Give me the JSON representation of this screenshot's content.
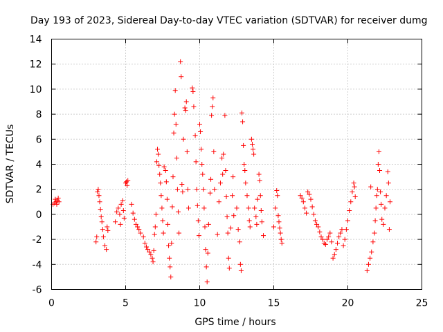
{
  "chart_data": {
    "type": "scatter",
    "title": "Day 193 of 2023, Sidereal Day-to-day VTEC variation (SDTVAR) for receiver dumg",
    "xlabel": "GPS time / hours",
    "ylabel": "SDTVAR / TECUs",
    "xlim": [
      0,
      25
    ],
    "ylim": [
      -6,
      14
    ],
    "xticks": [
      0,
      5,
      10,
      15,
      20,
      25
    ],
    "yticks": [
      -6,
      -4,
      -2,
      0,
      2,
      4,
      6,
      8,
      10,
      12,
      14
    ],
    "grid": true,
    "marker": "+",
    "marker_color": "#ff0000",
    "series": [
      {
        "name": "SDTVAR",
        "points": [
          [
            0.1,
            0.8
          ],
          [
            0.2,
            0.9
          ],
          [
            0.25,
            1.2
          ],
          [
            0.3,
            1.0
          ],
          [
            0.35,
            0.8
          ],
          [
            0.4,
            1.1
          ],
          [
            0.45,
            1.3
          ],
          [
            0.5,
            1.0
          ],
          [
            3.0,
            -2.2
          ],
          [
            3.05,
            -1.8
          ],
          [
            3.1,
            1.8
          ],
          [
            3.15,
            2.0
          ],
          [
            3.2,
            1.5
          ],
          [
            3.25,
            1.0
          ],
          [
            3.3,
            0.4
          ],
          [
            3.35,
            -0.2
          ],
          [
            3.4,
            -0.6
          ],
          [
            3.45,
            -1.2
          ],
          [
            3.5,
            -1.8
          ],
          [
            3.6,
            -2.5
          ],
          [
            3.7,
            -2.8
          ],
          [
            3.75,
            -1.0
          ],
          [
            3.8,
            -1.3
          ],
          [
            4.3,
            -0.6
          ],
          [
            4.4,
            0.2
          ],
          [
            4.5,
            0.5
          ],
          [
            4.6,
            0.0
          ],
          [
            4.65,
            -0.8
          ],
          [
            4.7,
            0.8
          ],
          [
            4.8,
            1.1
          ],
          [
            4.85,
            0.3
          ],
          [
            4.9,
            -0.3
          ],
          [
            5.0,
            2.5
          ],
          [
            5.05,
            2.6
          ],
          [
            5.1,
            2.3
          ],
          [
            5.15,
            2.7
          ],
          [
            5.4,
            0.8
          ],
          [
            5.5,
            0.1
          ],
          [
            5.6,
            -0.4
          ],
          [
            5.7,
            -0.8
          ],
          [
            5.8,
            -1.0
          ],
          [
            5.9,
            -1.2
          ],
          [
            6.0,
            -1.5
          ],
          [
            6.2,
            -1.8
          ],
          [
            6.3,
            -2.3
          ],
          [
            6.4,
            -2.6
          ],
          [
            6.5,
            -2.8
          ],
          [
            6.6,
            -3.0
          ],
          [
            6.7,
            -3.2
          ],
          [
            6.8,
            -3.5
          ],
          [
            6.85,
            -3.8
          ],
          [
            6.9,
            -2.9
          ],
          [
            6.95,
            -1.6
          ],
          [
            7.0,
            -1.0
          ],
          [
            7.05,
            0.0
          ],
          [
            7.1,
            4.2
          ],
          [
            7.15,
            5.2
          ],
          [
            7.2,
            4.8
          ],
          [
            7.25,
            3.9
          ],
          [
            7.3,
            3.2
          ],
          [
            7.35,
            2.5
          ],
          [
            7.4,
            1.5
          ],
          [
            7.45,
            0.5
          ],
          [
            7.5,
            -0.5
          ],
          [
            7.55,
            -1.5
          ],
          [
            7.6,
            3.8
          ],
          [
            7.7,
            3.5
          ],
          [
            7.75,
            2.6
          ],
          [
            7.8,
            1.2
          ],
          [
            7.85,
            -0.8
          ],
          [
            7.9,
            -2.5
          ],
          [
            7.95,
            -3.5
          ],
          [
            8.0,
            -4.2
          ],
          [
            8.05,
            -5.0
          ],
          [
            8.1,
            -2.3
          ],
          [
            8.15,
            0.6
          ],
          [
            8.2,
            3.0
          ],
          [
            8.25,
            6.5
          ],
          [
            8.3,
            8.0
          ],
          [
            8.35,
            9.9
          ],
          [
            8.4,
            7.2
          ],
          [
            8.45,
            4.5
          ],
          [
            8.5,
            2.0
          ],
          [
            8.55,
            0.2
          ],
          [
            8.6,
            -1.5
          ],
          [
            8.7,
            12.2
          ],
          [
            8.75,
            11.0
          ],
          [
            8.8,
            2.4
          ],
          [
            8.85,
            1.8
          ],
          [
            8.9,
            6.0
          ],
          [
            9.0,
            8.5
          ],
          [
            9.05,
            8.3
          ],
          [
            9.1,
            9.0
          ],
          [
            9.15,
            5.0
          ],
          [
            9.2,
            2.0
          ],
          [
            9.25,
            0.5
          ],
          [
            9.5,
            10.1
          ],
          [
            9.55,
            9.8
          ],
          [
            9.6,
            8.6
          ],
          [
            9.7,
            6.3
          ],
          [
            9.75,
            4.2
          ],
          [
            9.8,
            2.0
          ],
          [
            9.85,
            0.7
          ],
          [
            9.9,
            -0.5
          ],
          [
            9.95,
            -1.7
          ],
          [
            10.0,
            7.2
          ],
          [
            10.05,
            6.6
          ],
          [
            10.1,
            5.2
          ],
          [
            10.15,
            4.0
          ],
          [
            10.2,
            3.2
          ],
          [
            10.25,
            2.0
          ],
          [
            10.3,
            0.5
          ],
          [
            10.35,
            -1.0
          ],
          [
            10.4,
            -2.8
          ],
          [
            10.45,
            -4.2
          ],
          [
            10.5,
            -5.4
          ],
          [
            10.55,
            -3.1
          ],
          [
            10.6,
            -0.8
          ],
          [
            10.7,
            1.7
          ],
          [
            10.75,
            2.8
          ],
          [
            10.8,
            7.9
          ],
          [
            10.85,
            8.6
          ],
          [
            10.9,
            9.3
          ],
          [
            10.95,
            5.0
          ],
          [
            11.0,
            2.0
          ],
          [
            11.2,
            -1.6
          ],
          [
            11.3,
            1.0
          ],
          [
            11.4,
            2.5
          ],
          [
            11.5,
            4.5
          ],
          [
            11.55,
            3.2
          ],
          [
            11.6,
            4.8
          ],
          [
            11.7,
            7.9
          ],
          [
            11.75,
            3.5
          ],
          [
            11.8,
            1.4
          ],
          [
            11.85,
            -0.2
          ],
          [
            11.9,
            -1.5
          ],
          [
            11.95,
            -3.5
          ],
          [
            12.0,
            -4.3
          ],
          [
            12.1,
            -1.1
          ],
          [
            12.2,
            1.5
          ],
          [
            12.25,
            3.0
          ],
          [
            12.3,
            -0.1
          ],
          [
            12.5,
            0.5
          ],
          [
            12.6,
            -1.2
          ],
          [
            12.7,
            -2.2
          ],
          [
            12.75,
            -4.0
          ],
          [
            12.8,
            -4.5
          ],
          [
            12.85,
            8.1
          ],
          [
            12.9,
            7.4
          ],
          [
            12.95,
            5.5
          ],
          [
            13.0,
            4.0
          ],
          [
            13.05,
            3.5
          ],
          [
            13.1,
            2.5
          ],
          [
            13.2,
            1.5
          ],
          [
            13.3,
            0.5
          ],
          [
            13.35,
            -0.5
          ],
          [
            13.4,
            -1.0
          ],
          [
            13.5,
            6.0
          ],
          [
            13.55,
            5.6
          ],
          [
            13.6,
            5.2
          ],
          [
            13.65,
            4.8
          ],
          [
            13.7,
            0.5
          ],
          [
            13.8,
            -0.2
          ],
          [
            13.85,
            -0.8
          ],
          [
            13.9,
            1.2
          ],
          [
            14.0,
            3.2
          ],
          [
            14.05,
            2.7
          ],
          [
            14.1,
            1.5
          ],
          [
            14.15,
            0.3
          ],
          [
            14.2,
            -0.6
          ],
          [
            14.3,
            -1.7
          ],
          [
            15.0,
            -1.0
          ],
          [
            15.1,
            0.5
          ],
          [
            15.2,
            1.9
          ],
          [
            15.25,
            1.5
          ],
          [
            15.3,
            -0.1
          ],
          [
            15.35,
            -0.6
          ],
          [
            15.4,
            -1.1
          ],
          [
            15.45,
            -1.5
          ],
          [
            15.5,
            -2.0
          ],
          [
            15.55,
            -2.3
          ],
          [
            16.8,
            1.5
          ],
          [
            16.9,
            1.3
          ],
          [
            17.0,
            1.0
          ],
          [
            17.1,
            0.5
          ],
          [
            17.2,
            0.1
          ],
          [
            17.3,
            1.8
          ],
          [
            17.4,
            1.6
          ],
          [
            17.5,
            1.2
          ],
          [
            17.6,
            0.6
          ],
          [
            17.7,
            0.0
          ],
          [
            17.8,
            -0.5
          ],
          [
            17.9,
            -0.8
          ],
          [
            18.0,
            -1.0
          ],
          [
            18.1,
            -1.4
          ],
          [
            18.2,
            -1.8
          ],
          [
            18.3,
            -2.0
          ],
          [
            18.4,
            -2.3
          ],
          [
            18.5,
            -2.4
          ],
          [
            18.6,
            -2.0
          ],
          [
            18.7,
            -1.8
          ],
          [
            18.8,
            -1.5
          ],
          [
            18.9,
            -2.2
          ],
          [
            19.0,
            -3.5
          ],
          [
            19.1,
            -3.2
          ],
          [
            19.2,
            -2.8
          ],
          [
            19.3,
            -2.3
          ],
          [
            19.4,
            -1.8
          ],
          [
            19.5,
            -1.5
          ],
          [
            19.6,
            -1.2
          ],
          [
            19.7,
            -2.5
          ],
          [
            19.8,
            -2.0
          ],
          [
            19.9,
            -1.2
          ],
          [
            20.0,
            -0.5
          ],
          [
            20.1,
            0.3
          ],
          [
            20.2,
            1.0
          ],
          [
            20.3,
            1.8
          ],
          [
            20.4,
            2.5
          ],
          [
            20.45,
            2.2
          ],
          [
            20.5,
            1.4
          ],
          [
            21.3,
            -4.5
          ],
          [
            21.4,
            -4.0
          ],
          [
            21.5,
            -3.5
          ],
          [
            21.55,
            2.2
          ],
          [
            21.6,
            -3.0
          ],
          [
            21.7,
            -2.2
          ],
          [
            21.8,
            -1.5
          ],
          [
            21.85,
            -0.5
          ],
          [
            21.9,
            0.5
          ],
          [
            21.95,
            1.5
          ],
          [
            22.0,
            2.0
          ],
          [
            22.05,
            4.0
          ],
          [
            22.1,
            5.0
          ],
          [
            22.15,
            3.5
          ],
          [
            22.2,
            1.8
          ],
          [
            22.25,
            0.8
          ],
          [
            22.3,
            -0.4
          ],
          [
            22.4,
            -0.8
          ],
          [
            22.5,
            0.5
          ],
          [
            22.6,
            1.5
          ],
          [
            22.7,
            3.4
          ],
          [
            22.75,
            2.5
          ],
          [
            22.8,
            -1.2
          ],
          [
            22.85,
            1.0
          ]
        ]
      }
    ]
  }
}
